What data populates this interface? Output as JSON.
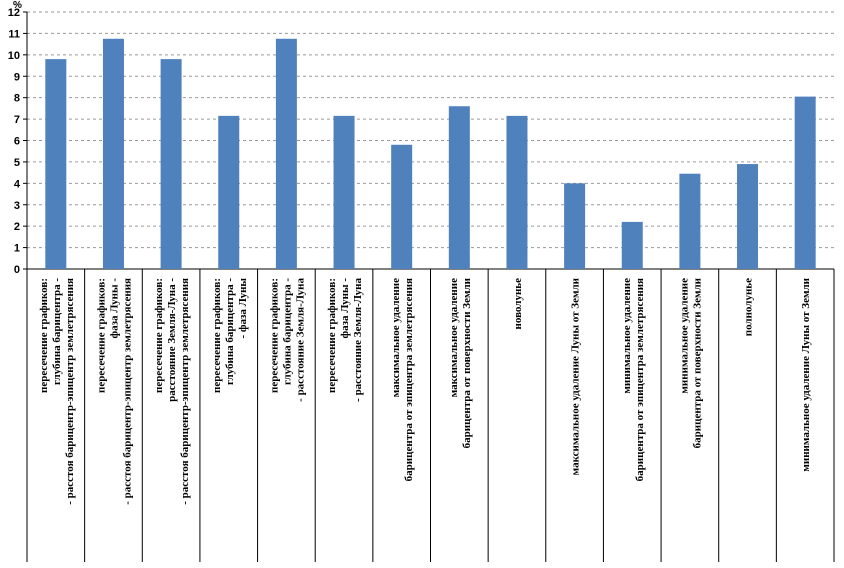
{
  "chart_data": {
    "type": "bar",
    "y_unit": "%",
    "ylim": [
      0,
      12
    ],
    "y_ticks": [
      0,
      1,
      2,
      3,
      4,
      5,
      6,
      7,
      8,
      9,
      10,
      11,
      12
    ],
    "grid": true,
    "grid_style": "dashed",
    "legend": "none",
    "bar_color": "#4f81bd",
    "categories": [
      [
        "пересечение графиков:",
        "глубина барицентра -",
        "- расстоя барицентр-эпицентр землетрясения"
      ],
      [
        "пересечение графиков:",
        "фаза Луны -",
        "- расстоя барицентр-эпицентр землетрясения"
      ],
      [
        "пересечение графиков:",
        "расстояние Земля-Луна -",
        "- расстоя барицентр-эпицентр землетрясения"
      ],
      [
        "пересечение графиков:",
        "глубина барицентра -",
        "- фаза Луны"
      ],
      [
        "пересечение графиков:",
        "глубина барицентра -",
        "- расстояние Земля-Луна"
      ],
      [
        "пересечение графиков:",
        "фаза Луны -",
        "- расстояние Земля-Луна"
      ],
      [
        "максимальное удаление",
        "барицентра от эпицентра землетрясения"
      ],
      [
        "максимальное удаление",
        "барицентра от поверхности Земли"
      ],
      [
        "новолунье"
      ],
      [
        "максимальное удаление Луны от Земли"
      ],
      [
        "минимальное удаление",
        "барицентра от эпицентра землетрясения"
      ],
      [
        "минимальное удаление",
        "барицентра от поверхности Земли"
      ],
      [
        "полнолунье"
      ],
      [
        "минимальное удаление Луны от Земли"
      ]
    ],
    "values": [
      9.8,
      10.75,
      9.8,
      7.15,
      10.75,
      7.15,
      5.8,
      7.6,
      7.15,
      4.0,
      2.2,
      4.45,
      4.9,
      8.05
    ]
  }
}
